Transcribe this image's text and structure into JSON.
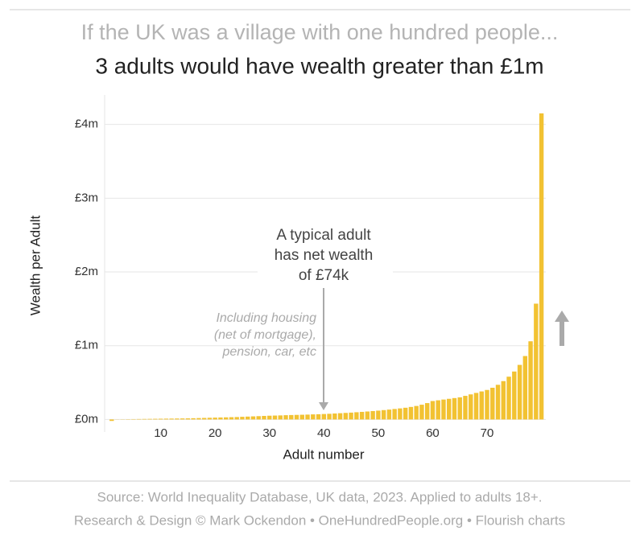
{
  "chart_data": {
    "type": "bar",
    "title": "If the UK was a village with one hundred people...",
    "subtitle": "3 adults would have wealth greater than £1m",
    "ylabel": "Wealth per Adult",
    "xlabel": "Adult number",
    "annotation": [
      "A typical adult",
      "has net wealth",
      "of £74k"
    ],
    "note": [
      "Including housing",
      "(net of mortgage),",
      "pension, car, etc"
    ],
    "source": [
      "Source: World Inequality Database, UK data, 2023. Applied to adults 18+.",
      "Research & Design © Mark Ockendon • OneHundredPeople.org • Flourish charts"
    ],
    "color": "#f2c232",
    "grid": true,
    "x": [
      1,
      2,
      3,
      4,
      5,
      6,
      7,
      8,
      9,
      10,
      11,
      12,
      13,
      14,
      15,
      16,
      17,
      18,
      19,
      20,
      21,
      22,
      23,
      24,
      25,
      26,
      27,
      28,
      29,
      30,
      31,
      32,
      33,
      34,
      35,
      36,
      37,
      38,
      39,
      40,
      41,
      42,
      43,
      44,
      45,
      46,
      47,
      48,
      49,
      50,
      51,
      52,
      53,
      54,
      55,
      56,
      57,
      58,
      59,
      60,
      61,
      62,
      63,
      64,
      65,
      66,
      67,
      68,
      69,
      70,
      71,
      72,
      73,
      74,
      75,
      76,
      77,
      78,
      79,
      80
    ],
    "values": [
      -0.02,
      0.002,
      0.003,
      0.004,
      0.005,
      0.006,
      0.007,
      0.008,
      0.009,
      0.01,
      0.011,
      0.012,
      0.013,
      0.014,
      0.015,
      0.017,
      0.019,
      0.021,
      0.023,
      0.025,
      0.027,
      0.029,
      0.031,
      0.033,
      0.036,
      0.039,
      0.042,
      0.045,
      0.048,
      0.051,
      0.053,
      0.055,
      0.058,
      0.06,
      0.062,
      0.064,
      0.066,
      0.069,
      0.071,
      0.074,
      0.077,
      0.081,
      0.085,
      0.089,
      0.093,
      0.098,
      0.103,
      0.108,
      0.114,
      0.12,
      0.127,
      0.134,
      0.142,
      0.15,
      0.159,
      0.17,
      0.183,
      0.2,
      0.222,
      0.25,
      0.26,
      0.27,
      0.28,
      0.29,
      0.3,
      0.32,
      0.34,
      0.36,
      0.38,
      0.4,
      0.43,
      0.47,
      0.52,
      0.58,
      0.65,
      0.74,
      0.86,
      1.06,
      1.57,
      4.15
    ],
    "xlim": [
      -0.3,
      80.8
    ],
    "xticks": [
      10,
      20,
      30,
      40,
      50,
      60,
      70
    ],
    "ylim": [
      -0.17,
      4.4
    ],
    "yticks": [
      {
        "value": 0,
        "label": "£0m"
      },
      {
        "value": 1,
        "label": "£1m"
      },
      {
        "value": 2,
        "label": "£2m"
      },
      {
        "value": 3,
        "label": "£3m"
      },
      {
        "value": 4,
        "label": "£4m"
      }
    ]
  }
}
